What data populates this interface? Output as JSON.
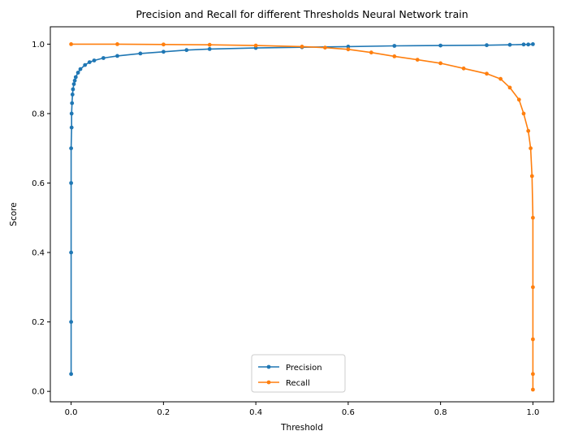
{
  "chart_data": {
    "type": "line",
    "title": "Precision and Recall for different Thresholds Neural Network train",
    "xlabel": "Threshold",
    "ylabel": "Score",
    "xlim": [
      -0.045,
      1.045
    ],
    "ylim": [
      -0.03,
      1.05
    ],
    "xticks": [
      0.0,
      0.2,
      0.4,
      0.6,
      0.8,
      1.0
    ],
    "xtick_labels": [
      "0.0",
      "0.2",
      "0.4",
      "0.6",
      "0.8",
      "1.0"
    ],
    "yticks": [
      0.0,
      0.2,
      0.4,
      0.6,
      0.8,
      1.0
    ],
    "ytick_labels": [
      "0.0",
      "0.2",
      "0.4",
      "0.6",
      "0.8",
      "1.0"
    ],
    "grid": false,
    "legend_position": "lower-center",
    "marker": "dot",
    "series": [
      {
        "name": "Precision",
        "color": "#1f77b4",
        "x": [
          0.0,
          0.0,
          0.0,
          0.0,
          0.0,
          0.001,
          0.001,
          0.002,
          0.003,
          0.004,
          0.006,
          0.008,
          0.01,
          0.015,
          0.02,
          0.03,
          0.04,
          0.05,
          0.07,
          0.1,
          0.15,
          0.2,
          0.25,
          0.3,
          0.4,
          0.5,
          0.6,
          0.7,
          0.8,
          0.9,
          0.95,
          0.98,
          0.99,
          1.0
        ],
        "y": [
          0.05,
          0.2,
          0.4,
          0.6,
          0.7,
          0.76,
          0.8,
          0.83,
          0.855,
          0.87,
          0.885,
          0.895,
          0.905,
          0.918,
          0.928,
          0.94,
          0.948,
          0.953,
          0.96,
          0.966,
          0.973,
          0.978,
          0.983,
          0.986,
          0.989,
          0.991,
          0.993,
          0.995,
          0.996,
          0.997,
          0.998,
          0.999,
          0.999,
          1.0
        ]
      },
      {
        "name": "Recall",
        "color": "#ff7f0e",
        "x": [
          0.0,
          0.1,
          0.2,
          0.3,
          0.4,
          0.5,
          0.55,
          0.6,
          0.65,
          0.7,
          0.75,
          0.8,
          0.85,
          0.9,
          0.93,
          0.95,
          0.97,
          0.98,
          0.99,
          0.995,
          0.998,
          1.0,
          1.0,
          1.0,
          1.0,
          1.0
        ],
        "y": [
          1.0,
          1.0,
          0.999,
          0.998,
          0.996,
          0.993,
          0.99,
          0.985,
          0.976,
          0.965,
          0.955,
          0.945,
          0.93,
          0.915,
          0.9,
          0.875,
          0.84,
          0.8,
          0.75,
          0.7,
          0.62,
          0.5,
          0.3,
          0.15,
          0.05,
          0.005
        ]
      }
    ]
  }
}
